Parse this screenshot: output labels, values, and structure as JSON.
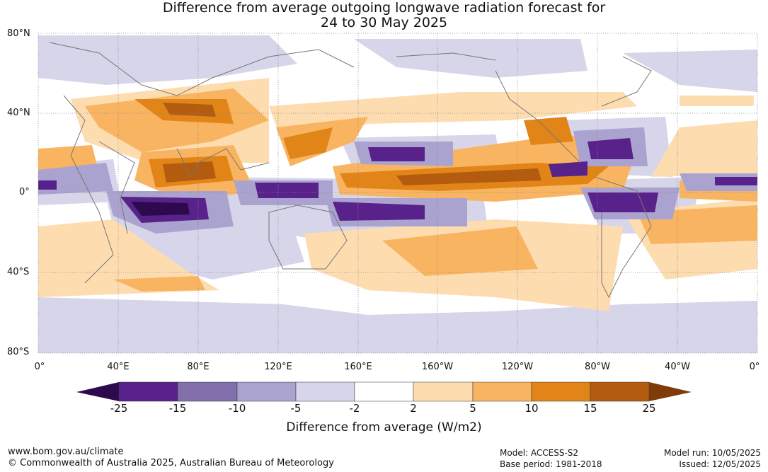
{
  "title": {
    "line1": "Difference from average outgoing longwave radiation forecast for",
    "line2": "24 to 30 May 2025"
  },
  "map": {
    "lat_labels": [
      "80°N",
      "40°N",
      "0°",
      "40°S",
      "80°S"
    ],
    "lon_labels": [
      "0°",
      "40°E",
      "80°E",
      "120°E",
      "160°E",
      "160°W",
      "120°W",
      "80°W",
      "40°W",
      "0°"
    ],
    "land_outline_color": "#777777",
    "grid_color": "#888888"
  },
  "colorbar": {
    "title": "Difference from average (W/m2)",
    "tick_labels": [
      "-25",
      "-15",
      "-10",
      "-5",
      "-2",
      "2",
      "5",
      "10",
      "15",
      "25"
    ],
    "colors": [
      "#2d0a4e",
      "#58228a",
      "#8170ab",
      "#aba3cf",
      "#d6d5ea",
      "#ffffff",
      "#fddcb0",
      "#f9b461",
      "#e18518",
      "#b35b0e",
      "#7f3b08"
    ]
  },
  "footer": {
    "url": "www.bom.gov.au/climate",
    "copyright": "© Commonwealth of Australia 2025, Australian Bureau of Meteorology",
    "model": "Model: ACCESS-S2",
    "base_period": "Base period: 1981-2018",
    "model_run": "Model run: 10/05/2025",
    "issued": "Issued: 12/05/2025"
  }
}
